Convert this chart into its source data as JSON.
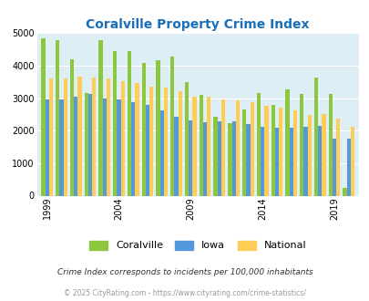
{
  "title": "Coralville Property Crime Index",
  "title_color": "#1a6fbb",
  "years": [
    1999,
    2000,
    2001,
    2002,
    2003,
    2004,
    2005,
    2006,
    2007,
    2008,
    2009,
    2010,
    2011,
    2012,
    2013,
    2014,
    2015,
    2016,
    2017,
    2018,
    2019,
    2020
  ],
  "coralville": [
    4830,
    4780,
    4200,
    3150,
    4770,
    4460,
    4440,
    4070,
    4180,
    4280,
    3490,
    3110,
    2440,
    2230,
    2650,
    3160,
    2790,
    3260,
    3140,
    3640,
    3120,
    230
  ],
  "iowa": [
    2970,
    2970,
    3040,
    3140,
    3000,
    2960,
    2880,
    2800,
    2620,
    2440,
    2320,
    2250,
    2280,
    2280,
    2200,
    2130,
    2090,
    2080,
    2110,
    2140,
    1760,
    1760
  ],
  "national": [
    3610,
    3610,
    3670,
    3640,
    3600,
    3510,
    3470,
    3350,
    3330,
    3220,
    3050,
    3050,
    2960,
    2940,
    2890,
    2750,
    2720,
    2610,
    2490,
    2500,
    2370,
    2120
  ],
  "coralville_color": "#8dc63f",
  "iowa_color": "#5599dd",
  "national_color": "#ffcc55",
  "bg_color": "#deeef5",
  "ylim": [
    0,
    5000
  ],
  "yticks": [
    0,
    1000,
    2000,
    3000,
    4000,
    5000
  ],
  "xlabel_ticks": [
    1999,
    2004,
    2009,
    2014,
    2019
  ],
  "footnote1": "Crime Index corresponds to incidents per 100,000 inhabitants",
  "footnote2": "© 2025 CityRating.com - https://www.cityrating.com/crime-statistics/",
  "footnote1_color": "#333333",
  "footnote2_color": "#999999"
}
